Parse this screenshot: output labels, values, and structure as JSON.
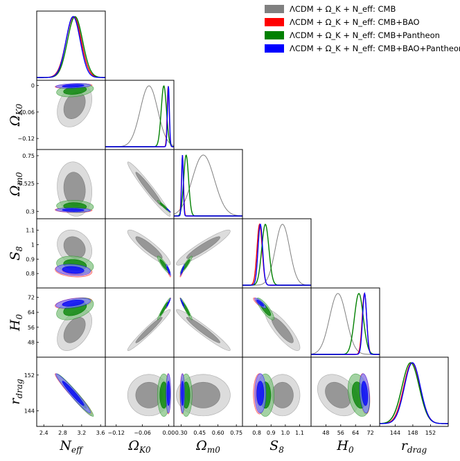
{
  "chart_data": {
    "type": "triangle-corner-plot",
    "parameters": [
      {
        "key": "Neff",
        "label": "N",
        "sub": "eff",
        "range": [
          2.25,
          3.7
        ],
        "ticks": [
          2.4,
          2.8,
          3.2,
          3.6
        ],
        "tick_labels": [
          "2.4",
          "2.8",
          "3.2",
          "3.6"
        ]
      },
      {
        "key": "OmK0",
        "label": "Ω",
        "sub": "K0",
        "range": [
          -0.145,
          0.012
        ],
        "ticks": [
          -0.12,
          -0.06,
          0.0
        ],
        "tick_labels": [
          "−0.12",
          "−0.06",
          "0"
        ],
        "x_ticks": [
          -0.12,
          -0.06,
          0.0
        ],
        "x_tick_labels": [
          "−0.12",
          "−0.06",
          "0.00"
        ]
      },
      {
        "key": "Omm0",
        "label": "Ω",
        "sub": "m0",
        "range": [
          0.24,
          0.8
        ],
        "ticks": [
          0.3,
          0.525,
          0.75
        ],
        "tick_labels": [
          "0.3",
          "0.525",
          "0.75"
        ],
        "x_ticks": [
          0.3,
          0.45,
          0.6,
          0.75
        ],
        "x_tick_labels": [
          "0.30",
          "0.45",
          "0.60",
          "0.75"
        ]
      },
      {
        "key": "S8",
        "label": "S",
        "sub": "8",
        "range": [
          0.7,
          1.18
        ],
        "ticks": [
          0.8,
          0.9,
          1.0,
          1.1
        ],
        "tick_labels": [
          "0.8",
          "0.9",
          "1",
          "1.1"
        ],
        "x_ticks": [
          0.8,
          0.9,
          1.0,
          1.1
        ],
        "x_tick_labels": [
          "0.8",
          "0.9",
          "1.0",
          "1.1"
        ]
      },
      {
        "key": "H0",
        "label": "H",
        "sub": "0",
        "range": [
          40,
          77
        ],
        "ticks": [
          48,
          56,
          64,
          72
        ],
        "tick_labels": [
          "48",
          "56",
          "64",
          "72"
        ]
      },
      {
        "key": "rdrag",
        "label": "r",
        "sub": "drag",
        "range": [
          140.5,
          156
        ],
        "ticks": [
          144,
          152
        ],
        "tick_labels": [
          "144",
          "152"
        ],
        "x_ticks": [
          144,
          148,
          152
        ],
        "x_tick_labels": [
          "144",
          "148",
          "152"
        ]
      }
    ],
    "series": [
      {
        "name": "CMB",
        "legend": "ΛCDM + Ω_K + N_eff: CMB",
        "color": "#7f7f7f",
        "fill_inner": "#808080",
        "fill_outer": "#cfcfcf",
        "mean": [
          3.05,
          -0.045,
          0.48,
          0.98,
          54.5,
          147.5
        ],
        "sigma": [
          0.15,
          0.02,
          0.09,
          0.05,
          4.5,
          1.9
        ]
      },
      {
        "name": "CMB+BAO",
        "legend": "ΛCDM + Ω_K + N_eff: CMB+BAO",
        "color": "#ff0000",
        "fill_inner": "#ff0000",
        "fill_outer": "#ff9999",
        "mean": [
          3.03,
          -0.001,
          0.31,
          0.82,
          68.8,
          147.8
        ],
        "sigma": [
          0.16,
          0.0023,
          0.008,
          0.018,
          1.2,
          1.85
        ]
      },
      {
        "name": "CMB+Pantheon",
        "legend": "ΛCDM + Ω_K + N_eff: CMB+Pantheon",
        "color": "#008000",
        "fill_inner": "#008000",
        "fill_outer": "#80c080",
        "mean": [
          3.06,
          -0.011,
          0.34,
          0.86,
          65.8,
          147.5
        ],
        "sigma": [
          0.16,
          0.006,
          0.02,
          0.025,
          2.4,
          1.95
        ]
      },
      {
        "name": "CMB+BAO+Pantheon",
        "legend": "ΛCDM + Ω_K + N_eff: CMB+BAO+Pantheon",
        "color": "#0000ff",
        "fill_inner": "#0000ff",
        "fill_outer": "#8080ff",
        "mean": [
          3.02,
          -0.0005,
          0.31,
          0.825,
          68.9,
          147.9
        ],
        "sigma": [
          0.15,
          0.0022,
          0.007,
          0.016,
          1.1,
          1.8
        ]
      }
    ],
    "correlations": [
      [
        1,
        0.3,
        -0.1,
        -0.2,
        0.45,
        -0.97
      ],
      [
        0.3,
        1,
        -0.97,
        -0.9,
        0.97,
        0.0
      ],
      [
        -0.1,
        -0.97,
        1,
        0.93,
        -0.96,
        0.0
      ],
      [
        -0.2,
        -0.9,
        0.93,
        1,
        -0.85,
        0.0
      ],
      [
        0.45,
        0.97,
        -0.96,
        -0.85,
        1,
        -0.3
      ],
      [
        -0.97,
        0.0,
        0.0,
        0.0,
        -0.3,
        1
      ]
    ],
    "legend_position": "top-right"
  }
}
